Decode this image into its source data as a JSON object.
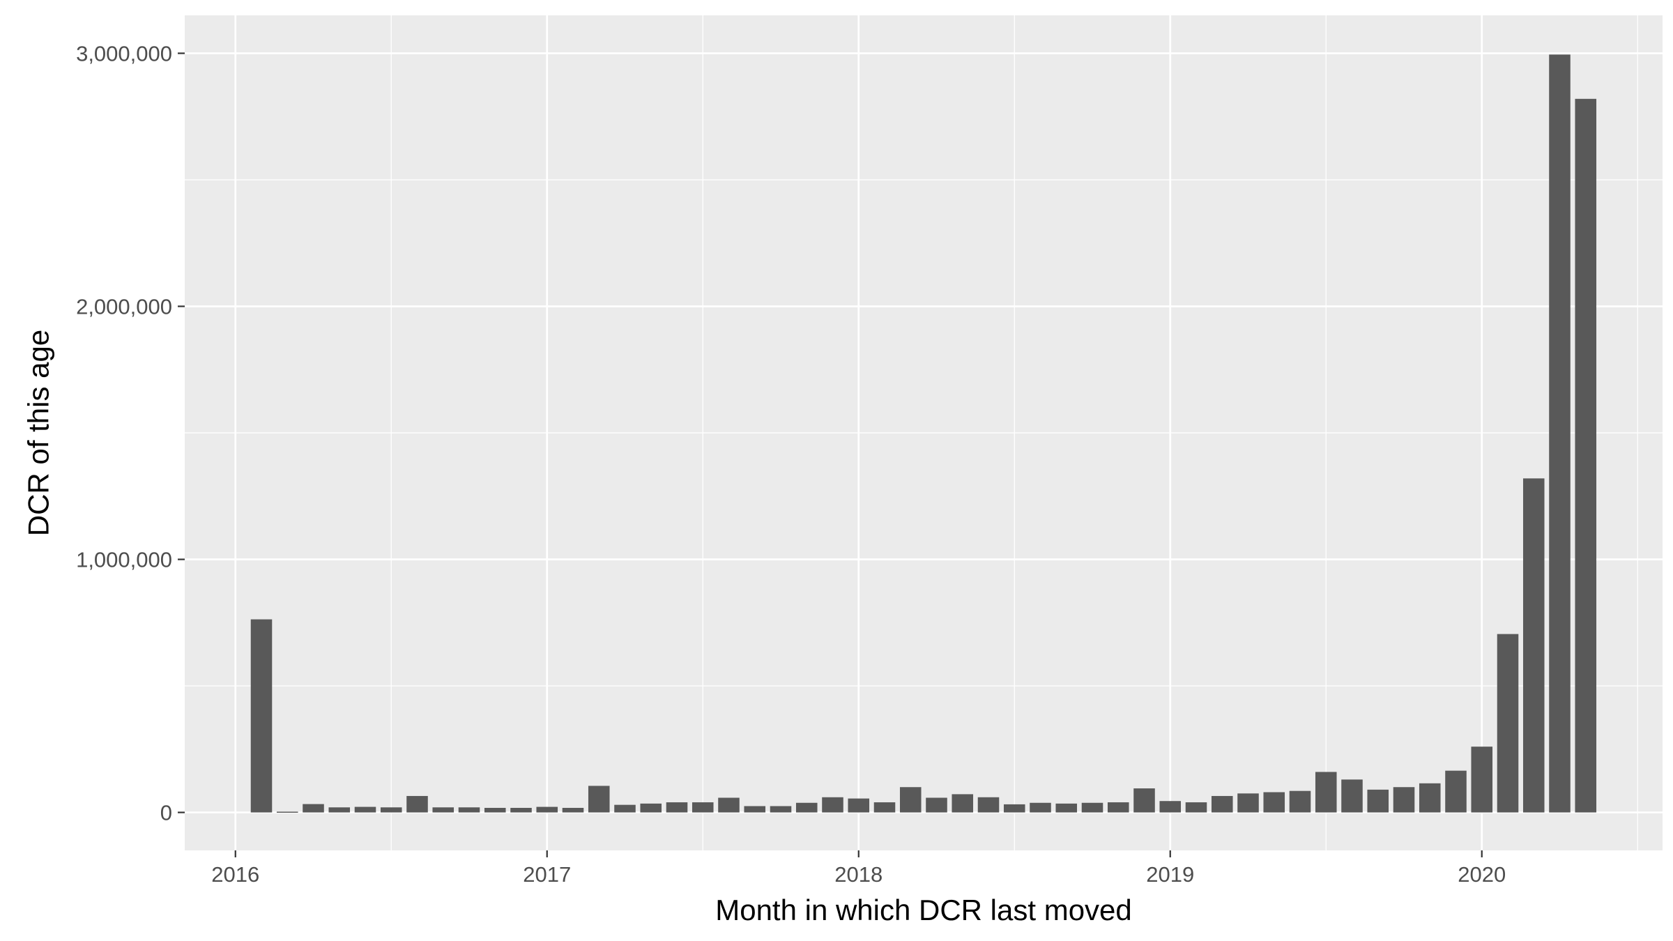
{
  "chart_data": {
    "type": "bar",
    "xlabel": "Month in which DCR last moved",
    "ylabel": "DCR of this age",
    "x_ticks": [
      "2016",
      "2017",
      "2018",
      "2019",
      "2020"
    ],
    "y_ticks": [
      "0",
      "1,000,000",
      "2,000,000",
      "3,000,000"
    ],
    "ylim": [
      -150000,
      3150000
    ],
    "grid": true,
    "categories": [
      "2016-02",
      "2016-03",
      "2016-04",
      "2016-05",
      "2016-06",
      "2016-07",
      "2016-08",
      "2016-09",
      "2016-10",
      "2016-11",
      "2016-12",
      "2017-01",
      "2017-02",
      "2017-03",
      "2017-04",
      "2017-05",
      "2017-06",
      "2017-07",
      "2017-08",
      "2017-09",
      "2017-10",
      "2017-11",
      "2017-12",
      "2018-01",
      "2018-02",
      "2018-03",
      "2018-04",
      "2018-05",
      "2018-06",
      "2018-07",
      "2018-08",
      "2018-09",
      "2018-10",
      "2018-11",
      "2018-12",
      "2019-01",
      "2019-02",
      "2019-03",
      "2019-04",
      "2019-05",
      "2019-06",
      "2019-07",
      "2019-08",
      "2019-09",
      "2019-10",
      "2019-11",
      "2019-12",
      "2020-01",
      "2020-02",
      "2020-03",
      "2020-04",
      "2020-05"
    ],
    "values": [
      763000,
      3000,
      33000,
      20000,
      22000,
      20000,
      65000,
      20000,
      20000,
      18000,
      18000,
      22000,
      18000,
      105000,
      30000,
      35000,
      40000,
      40000,
      58000,
      25000,
      25000,
      38000,
      60000,
      55000,
      40000,
      100000,
      58000,
      72000,
      60000,
      32000,
      38000,
      35000,
      38000,
      40000,
      95000,
      45000,
      40000,
      65000,
      75000,
      80000,
      85000,
      160000,
      130000,
      90000,
      100000,
      115000,
      165000,
      260000,
      705000,
      1320000,
      2995000,
      2820000
    ],
    "bar_color": "#595959",
    "panel_color": "#ebebeb",
    "grid_color": "#ffffff"
  }
}
